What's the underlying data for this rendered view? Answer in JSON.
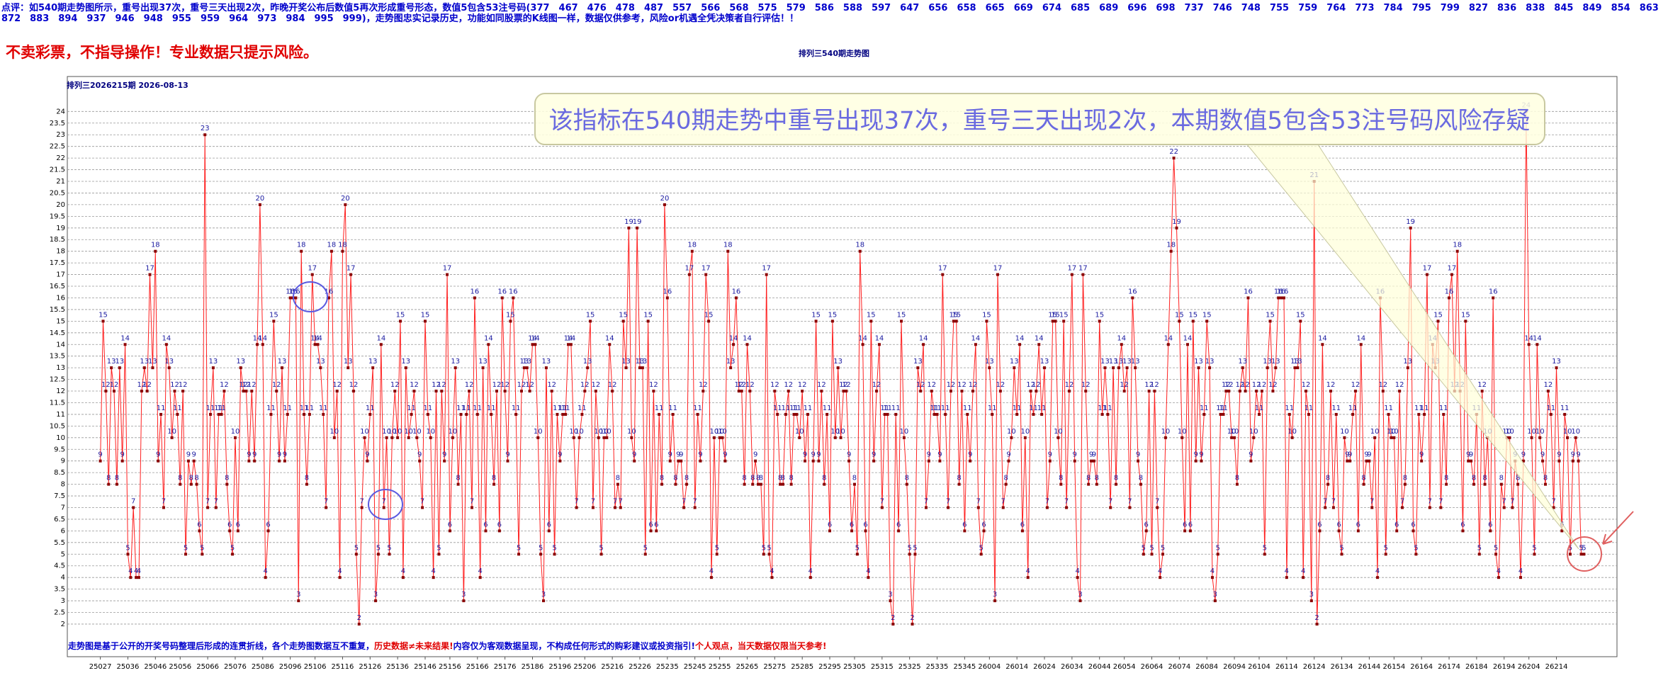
{
  "header": {
    "comment": "点评：如540期走势图所示，重号出现37次，重号三天出现2次，昨晚开奖公布后数值5再次形成重号形态，数值5包含53注号码(377　467　476　478　487　557　566　568　575　579　586　588　597　647　656　658　665　669　674　685　689　696　698　737　746　748　755　759　764　773　784　795　799　827　836　838　845　849　854　863　872　883　894　937　946　948　955　959　964　973　984　995　999)，走势图忠实记录历史，功能如同股票的K线图一样，数据仅供参考，风险or机遇全凭决策者自行评估！！",
    "warning": "不卖彩票，不指导操作！专业数据只提示风险。"
  },
  "chart_data": {
    "type": "line",
    "title": "排列三540期走势图",
    "subtitle": "排列三2026215期  2026-08-13",
    "annotation": "该指标在540期走势中重号出现37次，重号三天出现2次，本期数值5包含53注号码风险存疑",
    "footer": [
      "走势图是基于公开的开奖号码整理后形成的连贯折线，各个走势图数据互不重复，",
      "历史数据≠未来结果!",
      "内容仅为客观数据呈现，不构成任何形式的购彩建议或投资指引!",
      "个人观点，当天数据仅限当天参考!"
    ],
    "color": "#ff2020",
    "marker_color": "#8b0000",
    "label_color": "#1a1aa0",
    "grid": true,
    "xlim": [
      -12,
      551
    ],
    "ylim": [
      0.6,
      25.5
    ],
    "yticks": [
      2,
      2.5,
      3,
      3.5,
      4,
      4.5,
      5,
      5.5,
      6,
      6.5,
      7,
      7.5,
      8,
      8.5,
      9,
      9.5,
      10,
      10.5,
      11,
      11.5,
      12,
      12.5,
      13,
      13.5,
      14,
      14.5,
      15,
      15.5,
      16,
      16.5,
      17,
      17.5,
      18,
      18.5,
      19,
      19.5,
      20,
      20.5,
      21,
      21.5,
      22,
      22.5,
      23,
      23.5,
      24
    ],
    "xticks": [
      {
        "value": 0,
        "label": "25027"
      },
      {
        "value": 10,
        "label": "25036"
      },
      {
        "value": 20,
        "label": "25046"
      },
      {
        "value": 29,
        "label": "25056"
      },
      {
        "value": 39,
        "label": "25066"
      },
      {
        "value": 49,
        "label": "25076"
      },
      {
        "value": 59,
        "label": "25086"
      },
      {
        "value": 69,
        "label": "25096"
      },
      {
        "value": 78,
        "label": "25106"
      },
      {
        "value": 88,
        "label": "25116"
      },
      {
        "value": 98,
        "label": "25126"
      },
      {
        "value": 108,
        "label": "25136"
      },
      {
        "value": 118,
        "label": "25146"
      },
      {
        "value": 127,
        "label": "25156"
      },
      {
        "value": 137,
        "label": "25166"
      },
      {
        "value": 147,
        "label": "25176"
      },
      {
        "value": 157,
        "label": "25186"
      },
      {
        "value": 167,
        "label": "25196"
      },
      {
        "value": 176,
        "label": "25206"
      },
      {
        "value": 186,
        "label": "25216"
      },
      {
        "value": 196,
        "label": "25226"
      },
      {
        "value": 206,
        "label": "25235"
      },
      {
        "value": 216,
        "label": "25245"
      },
      {
        "value": 225,
        "label": "25255"
      },
      {
        "value": 235,
        "label": "25265"
      },
      {
        "value": 245,
        "label": "25275"
      },
      {
        "value": 255,
        "label": "25285"
      },
      {
        "value": 265,
        "label": "25295"
      },
      {
        "value": 274,
        "label": "25305"
      },
      {
        "value": 284,
        "label": "25315"
      },
      {
        "value": 294,
        "label": "25325"
      },
      {
        "value": 304,
        "label": "25335"
      },
      {
        "value": 314,
        "label": "25345"
      },
      {
        "value": 323,
        "label": "26004"
      },
      {
        "value": 333,
        "label": "26014"
      },
      {
        "value": 343,
        "label": "26024"
      },
      {
        "value": 353,
        "label": "26034"
      },
      {
        "value": 363,
        "label": "26044"
      },
      {
        "value": 372,
        "label": "26054"
      },
      {
        "value": 382,
        "label": "26064"
      },
      {
        "value": 392,
        "label": "26074"
      },
      {
        "value": 402,
        "label": "26084"
      },
      {
        "value": 412,
        "label": "26094"
      },
      {
        "value": 421,
        "label": "26104"
      },
      {
        "value": 431,
        "label": "26114"
      },
      {
        "value": 441,
        "label": "26124"
      },
      {
        "value": 451,
        "label": "26134"
      },
      {
        "value": 461,
        "label": "26144"
      },
      {
        "value": 470,
        "label": "26154"
      },
      {
        "value": 480,
        "label": "26164"
      },
      {
        "value": 490,
        "label": "26174"
      },
      {
        "value": 500,
        "label": "26184"
      },
      {
        "value": 510,
        "label": "26194"
      },
      {
        "value": 519,
        "label": "26204"
      },
      {
        "value": 529,
        "label": "26214"
      }
    ],
    "values": [
      9,
      15,
      12,
      8,
      13,
      12,
      8,
      13,
      9,
      14,
      5,
      4,
      7,
      4,
      4,
      12,
      13,
      12,
      17,
      13,
      18,
      9,
      11,
      7,
      14,
      13,
      10,
      12,
      11,
      8,
      12,
      5,
      9,
      8,
      9,
      8,
      6,
      5,
      23,
      7,
      11,
      13,
      7,
      11,
      11,
      12,
      8,
      6,
      5,
      10,
      6,
      13,
      12,
      12,
      9,
      12,
      9,
      14,
      20,
      14,
      4,
      6,
      11,
      15,
      12,
      9,
      13,
      9,
      11,
      16,
      16,
      16,
      3,
      18,
      11,
      8,
      11,
      17,
      14,
      14,
      13,
      11,
      7,
      16,
      18,
      10,
      12,
      4,
      18,
      20,
      13,
      17,
      12,
      5,
      2,
      7,
      10,
      9,
      11,
      13,
      3,
      5,
      14,
      7,
      10,
      5,
      10,
      12,
      10,
      15,
      4,
      13,
      10,
      11,
      12,
      10,
      9,
      7,
      15,
      11,
      10,
      4,
      12,
      5,
      12,
      9,
      17,
      6,
      10,
      13,
      8,
      11,
      3,
      11,
      12,
      7,
      16,
      11,
      4,
      13,
      6,
      14,
      11,
      8,
      12,
      6,
      16,
      12,
      9,
      15,
      16,
      11,
      5,
      12,
      13,
      13,
      12,
      14,
      14,
      10,
      5,
      3,
      13,
      6,
      12,
      5,
      11,
      9,
      11,
      11,
      14,
      14,
      10,
      7,
      10,
      11,
      12,
      13,
      15,
      7,
      12,
      10,
      5,
      10,
      10,
      14,
      12,
      7,
      8,
      7,
      15,
      13,
      19,
      10,
      9,
      19,
      13,
      13,
      5,
      15,
      6,
      12,
      6,
      11,
      8,
      20,
      16,
      9,
      11,
      8,
      9,
      9,
      7,
      8,
      17,
      18,
      7,
      11,
      9,
      12,
      17,
      15,
      4,
      10,
      5,
      10,
      10,
      9,
      18,
      13,
      14,
      16,
      12,
      12,
      8,
      14,
      12,
      8,
      9,
      8,
      8,
      5,
      17,
      5,
      4,
      12,
      11,
      8,
      8,
      11,
      12,
      8,
      11,
      11,
      10,
      12,
      9,
      11,
      4,
      9,
      15,
      9,
      12,
      8,
      11,
      6,
      15,
      10,
      13,
      10,
      12,
      12,
      9,
      6,
      8,
      5,
      18,
      14,
      6,
      4,
      15,
      9,
      12,
      14,
      7,
      11,
      11,
      3,
      2,
      11,
      6,
      15,
      10,
      8,
      5,
      2,
      5,
      13,
      12,
      14,
      7,
      9,
      12,
      11,
      11,
      9,
      17,
      11,
      7,
      12,
      15,
      15,
      8,
      12,
      6,
      11,
      9,
      12,
      14,
      7,
      5,
      6,
      15,
      13,
      11,
      3,
      17,
      12,
      7,
      8,
      9,
      10,
      13,
      11,
      14,
      6,
      10,
      4,
      12,
      11,
      12,
      14,
      11,
      13,
      7,
      9,
      15,
      15,
      10,
      8,
      15,
      7,
      12,
      17,
      9,
      4,
      3,
      17,
      12,
      8,
      9,
      9,
      8,
      15,
      11,
      13,
      11,
      7,
      13,
      8,
      13,
      14,
      12,
      13,
      7,
      16,
      13,
      9,
      8,
      5,
      6,
      12,
      5,
      12,
      7,
      4,
      5,
      10,
      14,
      18,
      22,
      19,
      15,
      10,
      6,
      14,
      6,
      15,
      9,
      13,
      9,
      11,
      15,
      13,
      4,
      3,
      5,
      11,
      11,
      12,
      12,
      10,
      10,
      8,
      12,
      13,
      12,
      16,
      9,
      10,
      12,
      11,
      12,
      5,
      13,
      15,
      12,
      13,
      16,
      16,
      16,
      4,
      11,
      10,
      13,
      13,
      15,
      4,
      12,
      11,
      3,
      21,
      2,
      6,
      14,
      7,
      8,
      12,
      7,
      11,
      6,
      5,
      10,
      9,
      9,
      11,
      12,
      6,
      14,
      8,
      9,
      9,
      7,
      10,
      4,
      16,
      12,
      5,
      11,
      10,
      10,
      6,
      12,
      7,
      8,
      13,
      19,
      6,
      5,
      11,
      9,
      11,
      17,
      7,
      14,
      13,
      15,
      7,
      11,
      8,
      16,
      17,
      12,
      18,
      12,
      6,
      15,
      9,
      9,
      8,
      11,
      5,
      12,
      8,
      10,
      6,
      16,
      5,
      4,
      8,
      7,
      10,
      10,
      7,
      9,
      8,
      4,
      9,
      24,
      14,
      10,
      5,
      14,
      10,
      9,
      8,
      12,
      11,
      7,
      13,
      9,
      6,
      11,
      10,
      5,
      9,
      10,
      9,
      5,
      5
    ]
  }
}
